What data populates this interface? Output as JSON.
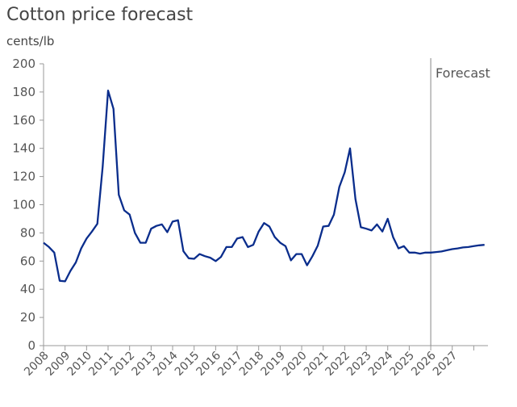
{
  "chart_data": {
    "type": "line",
    "title": "Cotton price forecast",
    "ylabel": "cents/lb",
    "xlabel": "",
    "ylim": [
      0,
      200
    ],
    "xlim": [
      2008,
      2028.9
    ],
    "yticks": [
      0,
      20,
      40,
      60,
      80,
      100,
      120,
      140,
      160,
      180,
      200
    ],
    "xticks": [
      "2008",
      "2009",
      "2010",
      "2011",
      "2012",
      "2013",
      "2014",
      "2015",
      "2016",
      "2017",
      "2018",
      "2019",
      "2020",
      "2021",
      "2022",
      "2023",
      "2024",
      "2025",
      "2026",
      "2027"
    ],
    "grid": false,
    "line_color": "#0A2D8C",
    "annotation": {
      "label": "Forecast",
      "x": 2026
    },
    "series": [
      {
        "x_start": 2008.0,
        "x_step": 0.25,
        "values": [
          73,
          70,
          66,
          46,
          45.6,
          53,
          59,
          69,
          76,
          81,
          86.5,
          127,
          181,
          168,
          107,
          96,
          93,
          80,
          73,
          73,
          83,
          85,
          86,
          80.5,
          88,
          89,
          67,
          62,
          61.6,
          65,
          63.5,
          62.4,
          60,
          63,
          70,
          70,
          76,
          77,
          70,
          71.5,
          81,
          87,
          84.5,
          77,
          73,
          70.6,
          60.5,
          65,
          65,
          57,
          63.5,
          71,
          84.5,
          85,
          93,
          112.6,
          123,
          140,
          104,
          84,
          83,
          81.7,
          86,
          81,
          90,
          77,
          69,
          70.6,
          66,
          66,
          65.3,
          66,
          66,
          66.4,
          66.8,
          67.7,
          68.5,
          69,
          69.7,
          70,
          70.6,
          71.2,
          71.5
        ]
      }
    ]
  }
}
